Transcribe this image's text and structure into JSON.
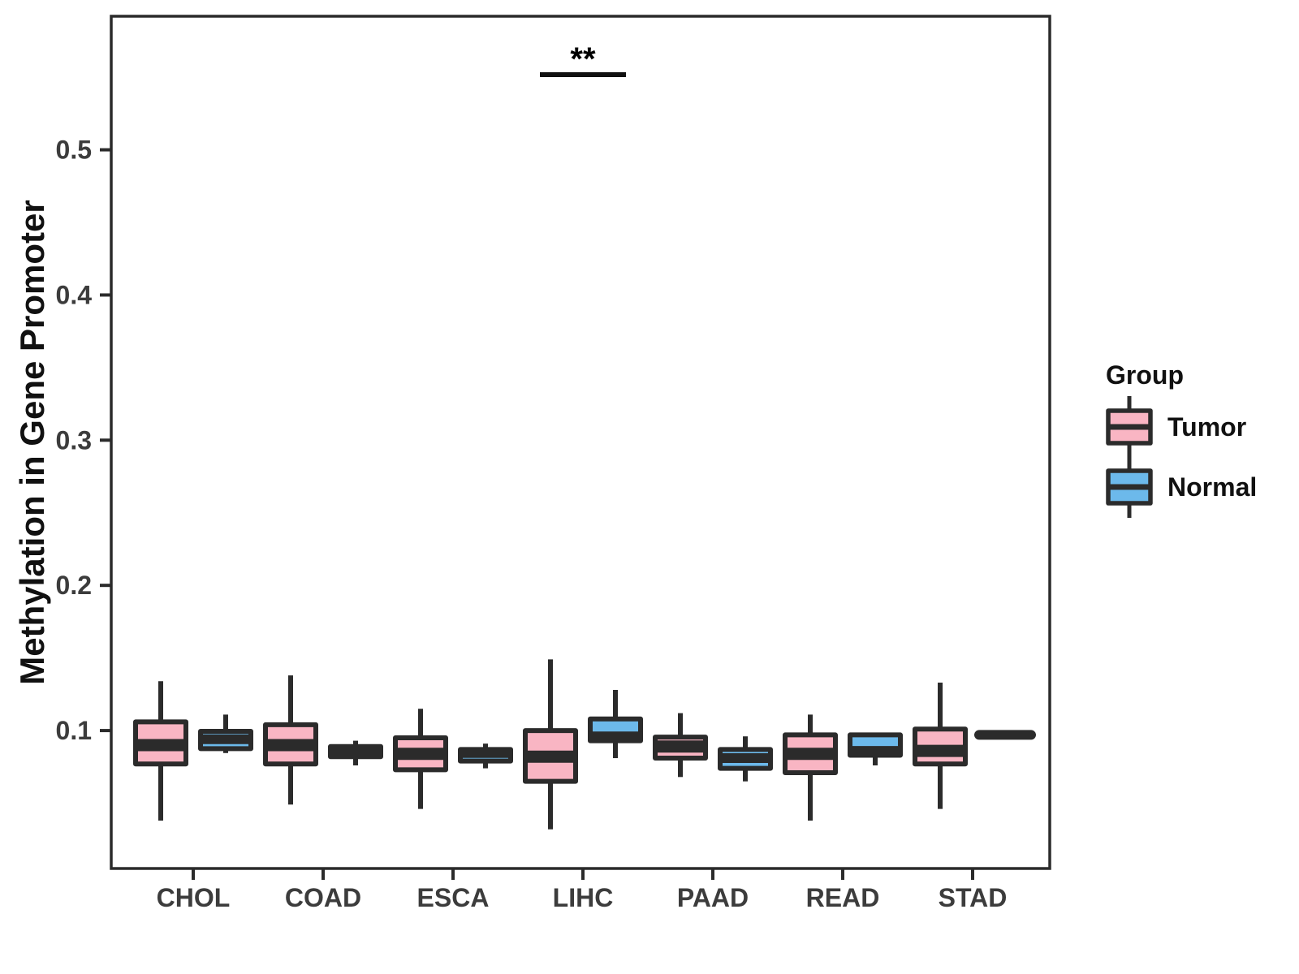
{
  "figure": {
    "y_axis_title": "Methylation in Gene Promoter"
  },
  "legend": {
    "title": "Group",
    "entries": [
      {
        "label": "Tumor",
        "color_key": "tumor"
      },
      {
        "label": "Normal",
        "color_key": "normal"
      }
    ]
  },
  "chart_data": {
    "type": "boxplot",
    "title": "",
    "xlabel": "",
    "ylabel": "Methylation in Gene Promoter",
    "categories": [
      "CHOL",
      "COAD",
      "ESCA",
      "LIHC",
      "PAAD",
      "READ",
      "STAD"
    ],
    "yticks": [
      0.1,
      0.2,
      0.3,
      0.4,
      0.5
    ],
    "ylim": [
      0.005,
      0.592
    ],
    "grid": false,
    "legend_position": "right",
    "colors": {
      "tumor": "#F9B5C3",
      "normal": "#6CB9EB",
      "stroke": "#2B2B2B",
      "axis_text": "#3C3C3C"
    },
    "series": [
      {
        "name": "Tumor",
        "color_key": "tumor",
        "boxes": [
          {
            "category": "CHOL",
            "min": 0.038,
            "q1": 0.077,
            "median": 0.09,
            "q3": 0.106,
            "max": 0.134
          },
          {
            "category": "COAD",
            "min": 0.049,
            "q1": 0.077,
            "median": 0.09,
            "q3": 0.104,
            "max": 0.138
          },
          {
            "category": "ESCA",
            "min": 0.046,
            "q1": 0.073,
            "median": 0.084,
            "q3": 0.095,
            "max": 0.115
          },
          {
            "category": "LIHC",
            "min": 0.032,
            "q1": 0.065,
            "median": 0.082,
            "q3": 0.1,
            "max": 0.149
          },
          {
            "category": "PAAD",
            "min": 0.068,
            "q1": 0.081,
            "median": 0.089,
            "q3": 0.0955,
            "max": 0.112
          },
          {
            "category": "READ",
            "min": 0.038,
            "q1": 0.071,
            "median": 0.084,
            "q3": 0.097,
            "max": 0.111
          },
          {
            "category": "STAD",
            "min": 0.046,
            "q1": 0.077,
            "median": 0.086,
            "q3": 0.101,
            "max": 0.133
          }
        ]
      },
      {
        "name": "Normal",
        "color_key": "normal",
        "boxes": [
          {
            "category": "CHOL",
            "min": 0.0845,
            "q1": 0.0875,
            "median": 0.094,
            "q3": 0.0995,
            "max": 0.111
          },
          {
            "category": "COAD",
            "min": 0.076,
            "q1": 0.082,
            "median": 0.0855,
            "q3": 0.089,
            "max": 0.093
          },
          {
            "category": "ESCA",
            "min": 0.074,
            "q1": 0.079,
            "median": 0.0845,
            "q3": 0.087,
            "max": 0.091
          },
          {
            "category": "LIHC",
            "min": 0.081,
            "q1": 0.093,
            "median": 0.096,
            "q3": 0.108,
            "max": 0.128
          },
          {
            "category": "PAAD",
            "min": 0.065,
            "q1": 0.074,
            "median": 0.081,
            "q3": 0.087,
            "max": 0.096
          },
          {
            "category": "READ",
            "min": 0.076,
            "q1": 0.083,
            "median": 0.086,
            "q3": 0.097,
            "max": 0.098
          },
          {
            "category": "STAD",
            "min": 0.097,
            "q1": 0.097,
            "median": 0.097,
            "q3": 0.097,
            "max": 0.097
          }
        ]
      }
    ],
    "annotations": [
      {
        "category": "LIHC",
        "label": "**"
      }
    ]
  }
}
